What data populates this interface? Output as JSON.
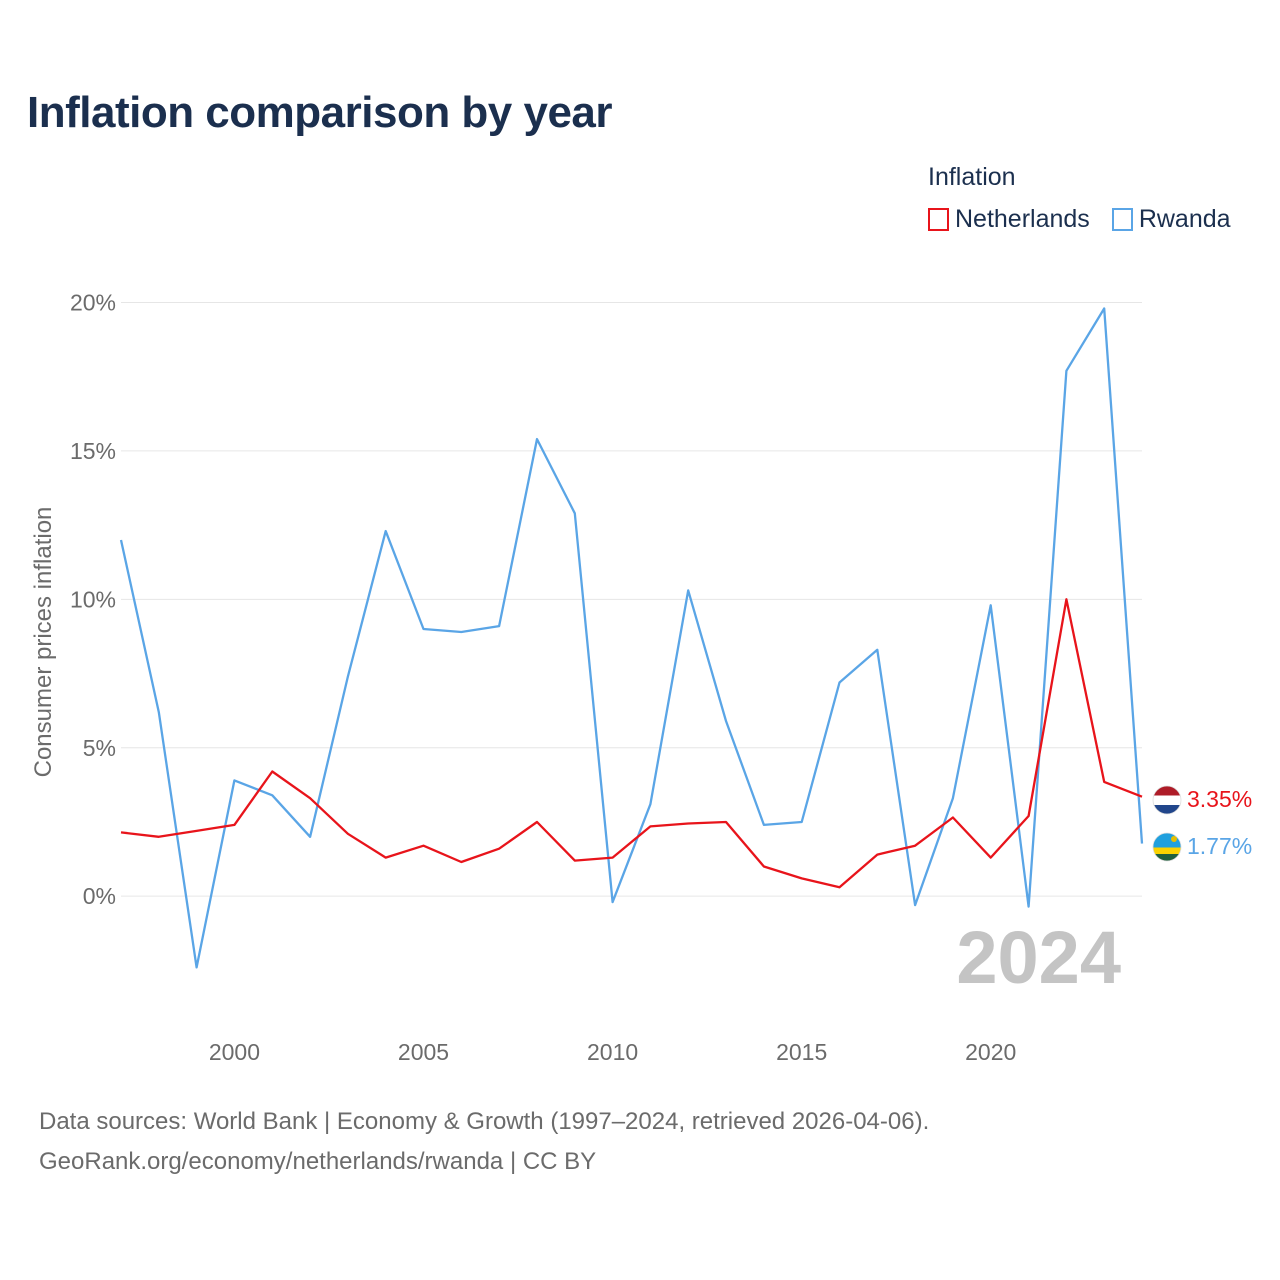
{
  "title": "Inflation comparison by year",
  "legend": {
    "title": "Inflation",
    "items": [
      {
        "label": "Netherlands",
        "color": "#e8141b"
      },
      {
        "label": "Rwanda",
        "color": "#5aa5e6"
      }
    ]
  },
  "footer": {
    "line1": "Data sources: World Bank | Economy & Growth (1997–2024, retrieved 2026-04-06).",
    "line2": "GeoRank.org/economy/netherlands/rwanda | CC BY"
  },
  "chart_data": {
    "type": "line",
    "title": "Inflation comparison by year",
    "xlabel": "",
    "ylabel": "Consumer prices inflation",
    "x": [
      1997,
      1998,
      1999,
      2000,
      2001,
      2002,
      2003,
      2004,
      2005,
      2006,
      2007,
      2008,
      2009,
      2010,
      2011,
      2012,
      2013,
      2014,
      2015,
      2016,
      2017,
      2018,
      2019,
      2020,
      2021,
      2022,
      2023,
      2024
    ],
    "xlim": [
      1997,
      2024
    ],
    "ylim": [
      -3.7,
      21.5
    ],
    "x_ticks": [
      {
        "value": 2000,
        "label": "2000"
      },
      {
        "value": 2005,
        "label": "2005"
      },
      {
        "value": 2010,
        "label": "2010"
      },
      {
        "value": 2015,
        "label": "2015"
      },
      {
        "value": 2020,
        "label": "2020"
      }
    ],
    "y_ticks": [
      {
        "value": 0,
        "label": "0%"
      },
      {
        "value": 5,
        "label": "5%"
      },
      {
        "value": 10,
        "label": "10%"
      },
      {
        "value": 15,
        "label": "15%"
      },
      {
        "value": 20,
        "label": "20%"
      }
    ],
    "grid": true,
    "year_watermark": "2024",
    "series": [
      {
        "name": "Netherlands",
        "color": "#e8141b",
        "end_label": "3.35%",
        "flag": "netherlands",
        "values": [
          2.15,
          2.0,
          2.2,
          2.4,
          4.2,
          3.3,
          2.1,
          1.3,
          1.7,
          1.15,
          1.6,
          2.5,
          1.2,
          1.3,
          2.35,
          2.45,
          2.5,
          1.0,
          0.6,
          0.3,
          1.4,
          1.7,
          2.65,
          1.3,
          2.7,
          10.0,
          3.85,
          3.35
        ]
      },
      {
        "name": "Rwanda",
        "color": "#5aa5e6",
        "end_label": "1.77%",
        "flag": "rwanda",
        "values": [
          12.0,
          6.2,
          -2.4,
          3.9,
          3.4,
          2.0,
          7.4,
          12.3,
          9.0,
          8.9,
          9.1,
          15.4,
          12.9,
          -0.2,
          3.1,
          10.3,
          5.9,
          2.4,
          2.5,
          7.2,
          8.3,
          -0.3,
          3.3,
          9.8,
          -0.35,
          17.7,
          19.8,
          1.77
        ]
      }
    ]
  }
}
